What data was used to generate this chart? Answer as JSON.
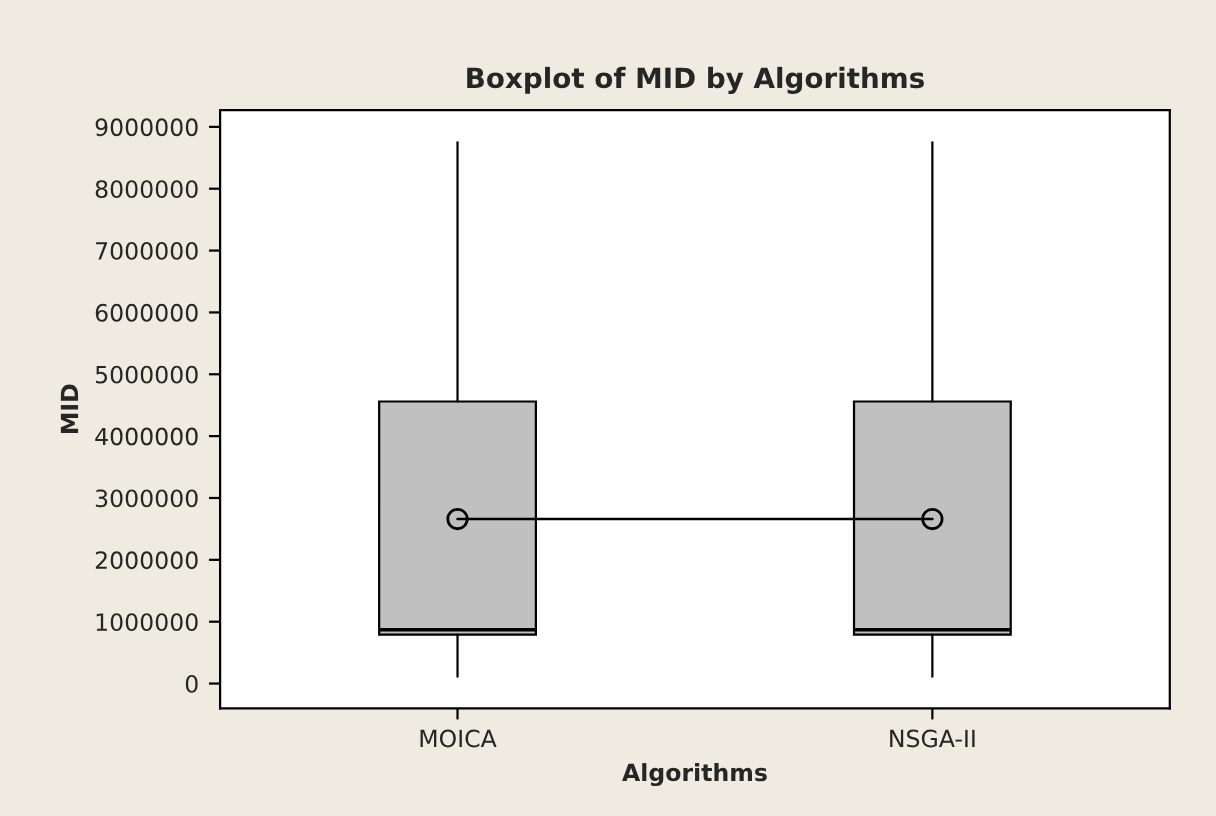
{
  "chart_data": {
    "type": "box",
    "title": "Boxplot of MID by Algorithms",
    "xlabel": "Algorithms",
    "ylabel": "MID",
    "categories": [
      "MOICA",
      "NSGA-II"
    ],
    "boxes": [
      {
        "low": 110000,
        "q1": 790000,
        "median": 870000,
        "q3": 4560000,
        "high": 8750000
      },
      {
        "low": 110000,
        "q1": 790000,
        "median": 870000,
        "q3": 4560000,
        "high": 8750000
      }
    ],
    "color": "#c0c0c0",
    "series": [
      {
        "type": "line",
        "color": "#000000",
        "marker": "circle",
        "values": [
          2660000,
          2660000
        ]
      }
    ],
    "ylim": [
      -400000,
      9270000
    ],
    "yticks": [
      0,
      1000000,
      2000000,
      3000000,
      4000000,
      5000000,
      6000000,
      7000000,
      8000000,
      9000000
    ],
    "grid": false,
    "legend": false
  }
}
